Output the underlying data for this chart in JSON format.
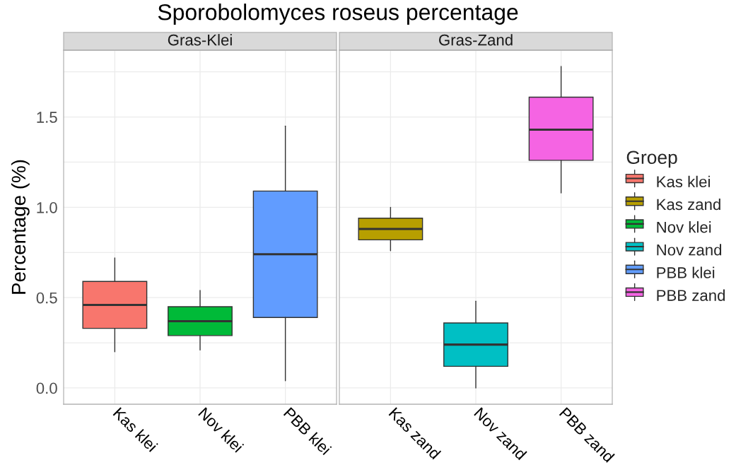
{
  "chart_data": [
    {
      "type": "box",
      "title": "Sporobolomyces roseus percentage",
      "subtitle": "Gras-Klei",
      "ylabel": "Percentage (%)",
      "categories": [
        "Kas klei",
        "Nov klei",
        "PBB klei"
      ],
      "series": [
        {
          "name": "Kas klei",
          "color": "#f8766d",
          "boxes": [
            {
              "low": 0.2,
              "q1": 0.33,
              "median": 0.46,
              "q3": 0.59,
              "high": 0.72
            },
            null,
            null
          ]
        },
        {
          "name": "Nov klei",
          "color": "#00ba38",
          "boxes": [
            null,
            {
              "low": 0.21,
              "q1": 0.29,
              "median": 0.37,
              "q3": 0.45,
              "high": 0.54
            },
            null
          ]
        },
        {
          "name": "PBB klei",
          "color": "#619cff",
          "boxes": [
            null,
            null,
            {
              "low": 0.04,
              "q1": 0.39,
              "median": 0.74,
              "q3": 1.09,
              "high": 1.45
            }
          ]
        }
      ],
      "ylim": [
        -0.09,
        1.87
      ],
      "yticks": [
        {
          "value": 0,
          "label": "0.0"
        },
        {
          "value": 0.25,
          "label": null
        },
        {
          "value": 0.5,
          "label": "0.5"
        },
        {
          "value": 0.75,
          "label": null
        },
        {
          "value": 1,
          "label": "1.0"
        },
        {
          "value": 1.25,
          "label": null
        },
        {
          "value": 1.5,
          "label": "1.5"
        },
        {
          "value": 1.75,
          "label": null
        }
      ],
      "grid": true,
      "legend": "right"
    },
    {
      "type": "box",
      "subtitle": "Gras-Zand",
      "categories": [
        "Kas zand",
        "Nov zand",
        "PBB zand"
      ],
      "series": [
        {
          "name": "Kas zand",
          "color": "#b79f00",
          "boxes": [
            {
              "low": 0.76,
              "q1": 0.82,
              "median": 0.88,
              "q3": 0.94,
              "high": 1.0
            },
            null,
            null
          ]
        },
        {
          "name": "Nov zand",
          "color": "#00bfc4",
          "boxes": [
            null,
            {
              "low": 0.0,
              "q1": 0.12,
              "median": 0.24,
              "q3": 0.36,
              "high": 0.48
            },
            null
          ]
        },
        {
          "name": "PBB zand",
          "color": "#f564e3",
          "boxes": [
            null,
            null,
            {
              "low": 1.08,
              "q1": 1.26,
              "median": 1.43,
              "q3": 1.61,
              "high": 1.78
            }
          ]
        }
      ],
      "ylim": [
        -0.09,
        1.87
      ],
      "yticks": [
        {
          "value": 0,
          "label": null
        },
        {
          "value": 0.25,
          "label": null
        },
        {
          "value": 0.5,
          "label": null
        },
        {
          "value": 0.75,
          "label": null
        },
        {
          "value": 1,
          "label": null
        },
        {
          "value": 1.25,
          "label": null
        },
        {
          "value": 1.5,
          "label": null
        },
        {
          "value": 1.75,
          "label": null
        }
      ],
      "grid": true,
      "tick_labels": "x",
      "legend": "right",
      "legend_title": "Groep"
    }
  ]
}
